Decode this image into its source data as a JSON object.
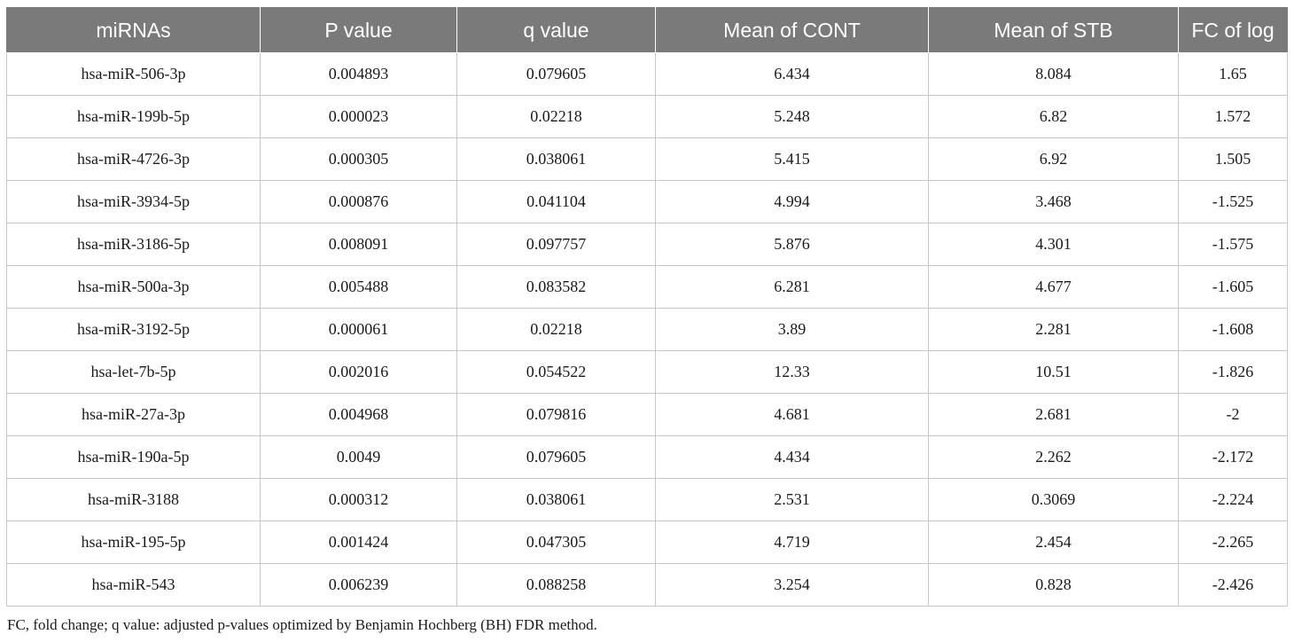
{
  "table": {
    "headers": [
      "miRNAs",
      "P value",
      "q value",
      "Mean of CONT",
      "Mean of STB",
      "FC of log"
    ],
    "rows": [
      [
        "hsa-miR-506-3p",
        "0.004893",
        "0.079605",
        "6.434",
        "8.084",
        "1.65"
      ],
      [
        "hsa-miR-199b-5p",
        "0.000023",
        "0.02218",
        "5.248",
        "6.82",
        "1.572"
      ],
      [
        "hsa-miR-4726-3p",
        "0.000305",
        "0.038061",
        "5.415",
        "6.92",
        "1.505"
      ],
      [
        "hsa-miR-3934-5p",
        "0.000876",
        "0.041104",
        "4.994",
        "3.468",
        "-1.525"
      ],
      [
        "hsa-miR-3186-5p",
        "0.008091",
        "0.097757",
        "5.876",
        "4.301",
        "-1.575"
      ],
      [
        "hsa-miR-500a-3p",
        "0.005488",
        "0.083582",
        "6.281",
        "4.677",
        "-1.605"
      ],
      [
        "hsa-miR-3192-5p",
        "0.000061",
        "0.02218",
        "3.89",
        "2.281",
        "-1.608"
      ],
      [
        "hsa-let-7b-5p",
        "0.002016",
        "0.054522",
        "12.33",
        "10.51",
        "-1.826"
      ],
      [
        "hsa-miR-27a-3p",
        "0.004968",
        "0.079816",
        "4.681",
        "2.681",
        "-2"
      ],
      [
        "hsa-miR-190a-5p",
        "0.0049",
        "0.079605",
        "4.434",
        "2.262",
        "-2.172"
      ],
      [
        "hsa-miR-3188",
        "0.000312",
        "0.038061",
        "2.531",
        "0.3069",
        "-2.224"
      ],
      [
        "hsa-miR-195-5p",
        "0.001424",
        "0.047305",
        "4.719",
        "2.454",
        "-2.265"
      ],
      [
        "hsa-miR-543",
        "0.006239",
        "0.088258",
        "3.254",
        "0.828",
        "-2.426"
      ]
    ]
  },
  "footnote": "FC, fold change; q value: adjusted p-values optimized by Benjamin Hochberg (BH) FDR method.",
  "colors": {
    "header_bg": "#7a7a7a",
    "header_text": "#ffffff",
    "border": "#c8c8c8"
  }
}
